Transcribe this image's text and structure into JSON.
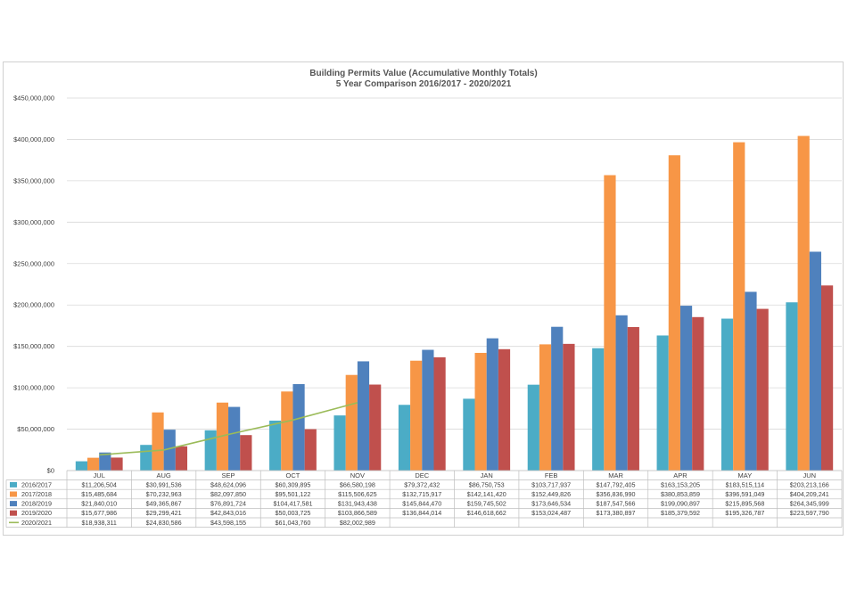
{
  "chart_data": {
    "type": "bar",
    "title": "Building Permits Value (Accumulative Monthly Totals)",
    "subtitle": "5 Year Comparison 2016/2017 - 2020/2021",
    "xlabel": "",
    "ylabel": "",
    "ylim": [
      0,
      450000000
    ],
    "yticks": [
      "$0",
      "$50,000,000",
      "$100,000,000",
      "$150,000,000",
      "$200,000,000",
      "$250,000,000",
      "$300,000,000",
      "$350,000,000",
      "$400,000,000",
      "$450,000,000"
    ],
    "grid": true,
    "legend": "data-table",
    "categories": [
      "JUL",
      "AUG",
      "SEP",
      "OCT",
      "NOV",
      "DEC",
      "JAN",
      "FEB",
      "MAR",
      "APR",
      "MAY",
      "JUN"
    ],
    "series": [
      {
        "name": "2016/2017",
        "kind": "bar",
        "color": "#4bacc6",
        "values": [
          11206504,
          30991536,
          48624096,
          60309895,
          66580198,
          79372432,
          86750753,
          103717937,
          147792405,
          163153205,
          183515114,
          203213166
        ],
        "labels": [
          "$11,206,504",
          "$30,991,536",
          "$48,624,096",
          "$60,309,895",
          "$66,580,198",
          "$79,372,432",
          "$86,750,753",
          "$103,717,937",
          "$147,792,405",
          "$163,153,205",
          "$183,515,114",
          "$203,213,166"
        ]
      },
      {
        "name": "2017/2018",
        "kind": "bar",
        "color": "#f79646",
        "values": [
          15485684,
          70232963,
          82097850,
          95501122,
          115506625,
          132715917,
          142141420,
          152449826,
          356836990,
          380853859,
          396591049,
          404209241
        ],
        "labels": [
          "$15,485,684",
          "$70,232,963",
          "$82,097,850",
          "$95,501,122",
          "$115,506,625",
          "$132,715,917",
          "$142,141,420",
          "$152,449,826",
          "$356,836,990",
          "$380,853,859",
          "$396,591,049",
          "$404,209,241"
        ]
      },
      {
        "name": "2018/2019",
        "kind": "bar",
        "color": "#4f81bd",
        "values": [
          21840010,
          49365867,
          76891724,
          104417581,
          131943438,
          145844470,
          159745502,
          173646534,
          187547566,
          199090897,
          215895568,
          264345999
        ],
        "labels": [
          "$21,840,010",
          "$49,365,867",
          "$76,891,724",
          "$104,417,581",
          "$131,943,438",
          "$145,844,470",
          "$159,745,502",
          "$173,646,534",
          "$187,547,566",
          "$199,090,897",
          "$215,895,568",
          "$264,345,999"
        ]
      },
      {
        "name": "2019/2020",
        "kind": "bar",
        "color": "#c0504d",
        "values": [
          15677986,
          29299421,
          42843016,
          50003725,
          103866589,
          136844014,
          146618662,
          153024487,
          173380897,
          185379592,
          195326787,
          223597790
        ],
        "labels": [
          "$15,677,986",
          "$29,299,421",
          "$42,843,016",
          "$50,003,725",
          "$103,866,589",
          "$136,844,014",
          "$146,618,662",
          "$153,024,487",
          "$173,380,897",
          "$185,379,592",
          "$195,326,787",
          "$223,597,790"
        ]
      },
      {
        "name": "2020/2021",
        "kind": "line",
        "color": "#9bbb59",
        "values": [
          18938311,
          24830586,
          43598155,
          61043760,
          82002989,
          null,
          null,
          null,
          null,
          null,
          null,
          null
        ],
        "labels": [
          "$18,938,311",
          "$24,830,586",
          "$43,598,155",
          "$61,043,760",
          "$82,002,989",
          "",
          "",
          "",
          "",
          "",
          "",
          ""
        ]
      }
    ]
  }
}
